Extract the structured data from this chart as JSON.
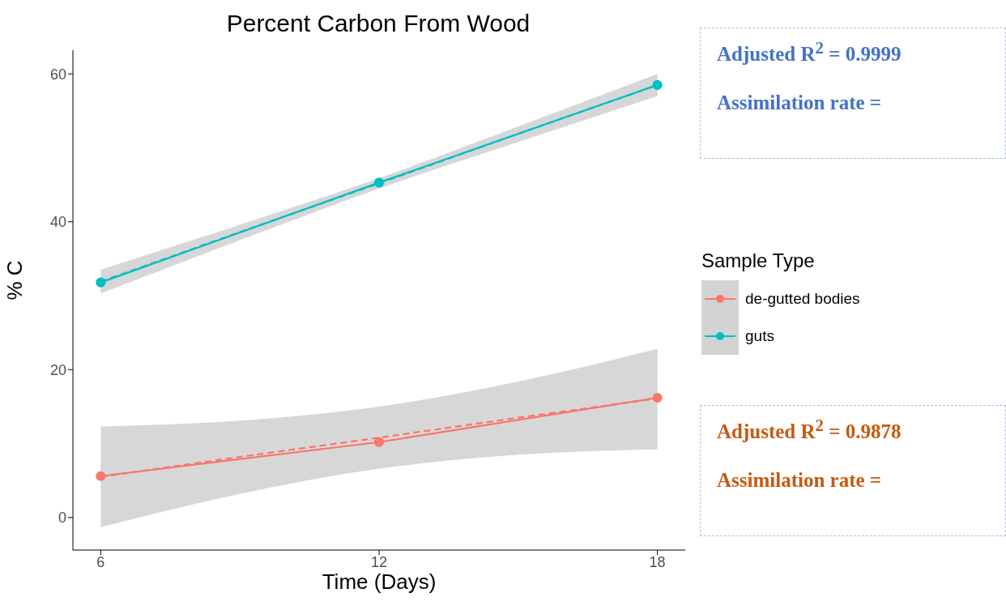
{
  "chart_data": {
    "type": "line",
    "title": "Percent Carbon From Wood",
    "xlabel": "Time (Days)",
    "ylabel": "% C",
    "legend_title": "Sample Type",
    "legend": "right",
    "xlim": [
      5.4,
      18.6
    ],
    "xticks": [
      6,
      12,
      18
    ],
    "ylim": [
      -4.4,
      63.2
    ],
    "yticks": [
      0,
      20,
      40,
      60
    ],
    "series": [
      {
        "type": "line",
        "line_style": "dashed",
        "marker": "none",
        "color": "#f8766d",
        "x": [
          6,
          9,
          12,
          15,
          18
        ],
        "values": [
          5.5,
          8.2,
          10.8,
          13.5,
          16.1
        ],
        "lower": [
          -1.3,
          3.2,
          6.6,
          8.5,
          9.2
        ],
        "upper": [
          12.3,
          13.1,
          15.0,
          18.4,
          22.8
        ]
      },
      {
        "type": "line",
        "line_style": "dashed",
        "marker": "none",
        "color": "#00bfc4",
        "x": [
          6,
          9,
          12,
          15,
          18
        ],
        "values": [
          31.9,
          38.6,
          45.2,
          51.9,
          58.5
        ],
        "lower": [
          30.3,
          37.5,
          44.5,
          50.8,
          57.0
        ],
        "upper": [
          33.5,
          39.6,
          45.9,
          52.9,
          60.0
        ]
      },
      {
        "name": "de-gutted bodies",
        "type": "line",
        "line_style": "solid",
        "marker": "circle",
        "color": "#f8766d",
        "x": [
          6,
          12,
          18
        ],
        "values": [
          5.6,
          10.2,
          16.2
        ]
      },
      {
        "name": "guts",
        "type": "line",
        "line_style": "solid",
        "marker": "circle",
        "color": "#00bfc4",
        "x": [
          6,
          12,
          18
        ],
        "values": [
          31.8,
          45.3,
          58.5
        ]
      }
    ],
    "annotations": [
      "Adjusted R$^{2}$ = 0.9999",
      "Assimilation rate =",
      "Adjusted R$^{2}$ = 0.9878",
      "Assimilation rate ="
    ]
  }
}
